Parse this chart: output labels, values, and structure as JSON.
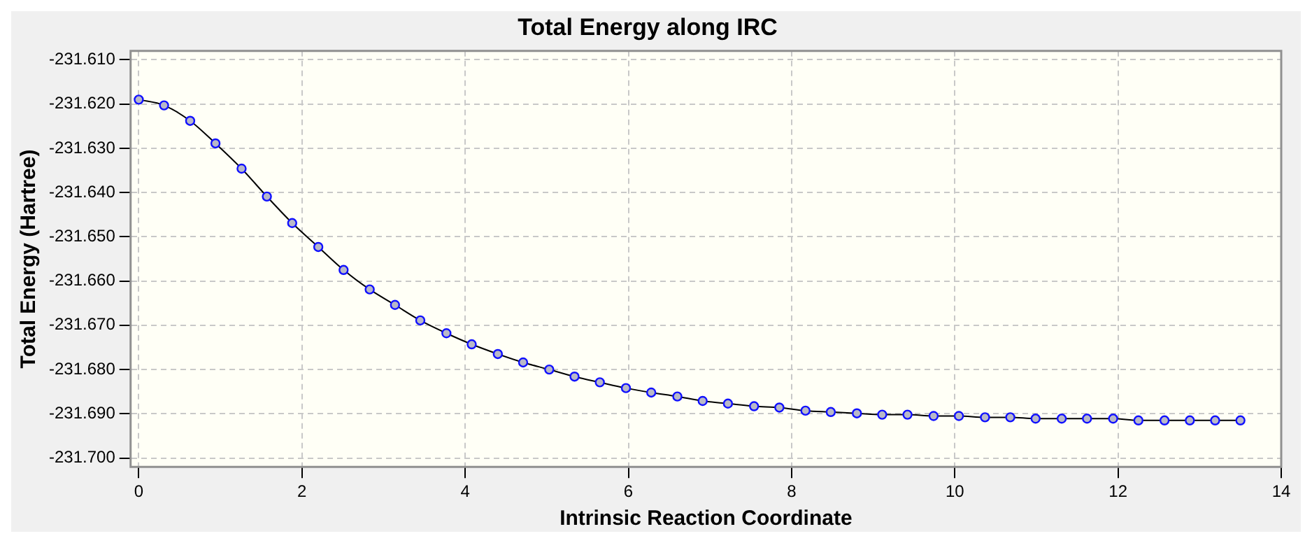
{
  "chart_data": {
    "type": "line",
    "title": "Total Energy along IRC",
    "xlabel": "Intrinsic Reaction Coordinate",
    "ylabel": "Total Energy (Hartree)",
    "x": [
      0,
      0.31,
      0.63,
      0.94,
      1.26,
      1.57,
      1.88,
      2.2,
      2.51,
      2.83,
      3.14,
      3.45,
      3.77,
      4.08,
      4.4,
      4.71,
      5.03,
      5.34,
      5.65,
      5.97,
      6.28,
      6.6,
      6.91,
      7.22,
      7.54,
      7.85,
      8.17,
      8.48,
      8.8,
      9.11,
      9.42,
      9.74,
      10.05,
      10.37,
      10.68,
      10.99,
      11.31,
      11.62,
      11.94,
      12.25,
      12.57,
      12.88,
      13.19,
      13.5
    ],
    "series": [
      {
        "color": "#000000",
        "values": [
          -231.619,
          -231.6203,
          -231.6238,
          -231.6289,
          -231.6346,
          -231.6409,
          -231.6469,
          -231.6523,
          -231.6575,
          -231.6619,
          -231.6654,
          -231.6689,
          -231.6718,
          -231.6743,
          -231.6765,
          -231.6784,
          -231.68,
          -231.6816,
          -231.6829,
          -231.6842,
          -231.6852,
          -231.6861,
          -231.6871,
          -231.6877,
          -231.6883,
          -231.6886,
          -231.6893,
          -231.6896,
          -231.6899,
          -231.6902,
          -231.6902,
          -231.6905,
          -231.6905,
          -231.6908,
          -231.6908,
          -231.6911,
          -231.6911,
          -231.6911,
          -231.6911,
          -231.6915,
          -231.6915,
          -231.6915,
          -231.6915,
          -231.6915
        ]
      }
    ],
    "marker": "circle",
    "line_style": "solid",
    "grid": true,
    "legend": false,
    "xlim": [
      -0.1,
      14
    ],
    "xticks": [
      0,
      2,
      4,
      6,
      8,
      10,
      12,
      14
    ],
    "ylim": [
      -231.702,
      -231.608
    ],
    "yticks": [
      {
        "value": -231.7,
        "label": "-231.700"
      },
      {
        "value": -231.69,
        "label": "-231.690"
      },
      {
        "value": -231.68,
        "label": "-231.680"
      },
      {
        "value": -231.67,
        "label": "-231.670"
      },
      {
        "value": -231.66,
        "label": "-231.660"
      },
      {
        "value": -231.65,
        "label": "-231.650"
      },
      {
        "value": -231.64,
        "label": "-231.640"
      },
      {
        "value": -231.63,
        "label": "-231.630"
      },
      {
        "value": -231.62,
        "label": "-231.620"
      },
      {
        "value": -231.61,
        "label": "-231.610"
      }
    ]
  }
}
